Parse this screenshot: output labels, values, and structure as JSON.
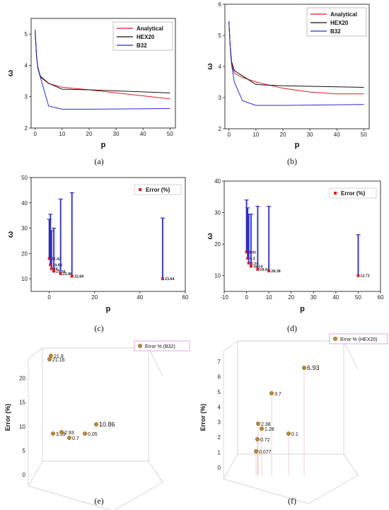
{
  "chart_data": [
    {
      "panel": "a",
      "type": "line",
      "caption": "(a)",
      "xlabel": "p",
      "ylabel": "ω",
      "xlim": [
        -1.5,
        52
      ],
      "ylim": [
        2,
        5.5
      ],
      "xticks": [
        0,
        10,
        20,
        30,
        40,
        50
      ],
      "yticks": [
        2,
        3,
        4,
        5
      ],
      "legend_position": "top-right",
      "series": [
        {
          "name": "Analytical",
          "color": "#e8191e",
          "x": [
            0,
            0.5,
            1,
            2,
            5,
            10,
            20,
            50
          ],
          "y": [
            5.1,
            4.3,
            3.95,
            3.62,
            3.42,
            3.3,
            3.22,
            2.93
          ]
        },
        {
          "name": "HEX20",
          "color": "#111111",
          "x": [
            0,
            0.5,
            1,
            2,
            5,
            10,
            20,
            50
          ],
          "y": [
            5.05,
            4.3,
            3.9,
            3.65,
            3.43,
            3.24,
            3.22,
            3.12
          ]
        },
        {
          "name": "B32",
          "color": "#2a2ad6",
          "x": [
            0,
            0.5,
            1,
            2,
            5,
            10,
            20,
            50
          ],
          "y": [
            5.15,
            4.35,
            3.9,
            3.6,
            2.7,
            2.6,
            2.6,
            2.62
          ]
        }
      ]
    },
    {
      "panel": "b",
      "type": "line",
      "caption": "(b)",
      "xlabel": "p",
      "ylabel": "ω",
      "xlim": [
        -1.5,
        52
      ],
      "ylim": [
        2,
        6
      ],
      "xticks": [
        0,
        10,
        20,
        30,
        40,
        50
      ],
      "yticks": [
        2,
        3,
        4,
        5,
        6
      ],
      "legend_position": "top-right",
      "series": [
        {
          "name": "Analytical",
          "color": "#e8191e",
          "x": [
            0,
            0.5,
            1,
            2,
            5,
            10,
            20,
            30,
            40,
            50
          ],
          "y": [
            5.4,
            4.6,
            4.1,
            3.78,
            3.65,
            3.5,
            3.3,
            3.18,
            3.12,
            3.12
          ]
        },
        {
          "name": "HEX20",
          "color": "#111111",
          "x": [
            0,
            0.5,
            1,
            2,
            5,
            10,
            20,
            50
          ],
          "y": [
            5.45,
            4.6,
            4.15,
            3.87,
            3.7,
            3.42,
            3.38,
            3.33
          ]
        },
        {
          "name": "B32",
          "color": "#2a2ad6",
          "x": [
            0,
            0.5,
            1,
            2,
            5,
            10,
            20,
            50
          ],
          "y": [
            5.45,
            4.55,
            4.05,
            3.5,
            2.9,
            2.75,
            2.75,
            2.78
          ]
        }
      ]
    },
    {
      "panel": "c",
      "type": "scatter",
      "caption": "(c)",
      "xlabel": "p",
      "ylabel": "ω",
      "xlim": [
        -8,
        60
      ],
      "ylim": [
        5,
        50
      ],
      "xticks": [
        0,
        20,
        40,
        60
      ],
      "yticks": [
        10,
        20,
        30,
        40,
        50
      ],
      "legend": "Error (%)",
      "legend_position": "top-right",
      "points": [
        {
          "x": 0,
          "y": 18,
          "top": 33.5,
          "label": "21.42"
        },
        {
          "x": 0.5,
          "y": 15.5,
          "top": 35.5,
          "label": "20.83"
        },
        {
          "x": 1,
          "y": 14,
          "top": 29,
          "label": "16.3"
        },
        {
          "x": 2,
          "y": 13,
          "top": 30,
          "label": "21.16"
        },
        {
          "x": 5,
          "y": 12,
          "top": 41.5,
          "label": "25.86"
        },
        {
          "x": 10,
          "y": 11,
          "top": 44,
          "label": "32.69"
        },
        {
          "x": 50,
          "y": 10,
          "top": 34,
          "label": "23.64"
        }
      ]
    },
    {
      "panel": "d",
      "type": "scatter",
      "caption": "(d)",
      "xlabel": "p",
      "ylabel": "ω",
      "xlim": [
        -10,
        60
      ],
      "ylim": [
        5,
        40
      ],
      "xticks": [
        -10,
        0,
        10,
        20,
        30,
        40,
        50,
        60
      ],
      "yticks": [
        10,
        20,
        30,
        40
      ],
      "legend": "Error (%)",
      "legend_position": "top-right",
      "points": [
        {
          "x": 0,
          "y": 17.5,
          "top": 34,
          "label": "4.01"
        },
        {
          "x": 0.5,
          "y": 15.5,
          "top": 31.5,
          "label": "6.2"
        },
        {
          "x": 1,
          "y": 14,
          "top": 29.5,
          "label": "5.14"
        },
        {
          "x": 2,
          "y": 13,
          "top": 29.5,
          "label": "16.14"
        },
        {
          "x": 5,
          "y": 12,
          "top": 32,
          "label": "19.91"
        },
        {
          "x": 10,
          "y": 11.5,
          "top": 32,
          "label": "20.38"
        },
        {
          "x": 50,
          "y": 10,
          "top": 23,
          "label": "12.71"
        }
      ]
    },
    {
      "panel": "e",
      "type": "scatter3d",
      "caption": "(e)",
      "zlabel": "Error (%)",
      "zlim": [
        0,
        22
      ],
      "zticks": [
        0,
        5,
        10,
        15,
        20
      ],
      "legend": "Error % (B32)",
      "legend_position": "top-right",
      "point_labels": [
        "21.9",
        "21.16",
        "10.86",
        "3.59",
        "2.93",
        "0.05",
        "0.7"
      ]
    },
    {
      "panel": "f",
      "type": "scatter3d",
      "caption": "(f)",
      "zlabel": "Error (%)",
      "zlim": [
        0,
        7
      ],
      "zticks": [
        0,
        1,
        2,
        3,
        4,
        5,
        6,
        7
      ],
      "legend": "Error % (HEX20)",
      "legend_position": "top-right",
      "point_labels": [
        "6.93",
        "3.7",
        "2.38",
        "1.28",
        "0.1",
        "0.72",
        "0.077"
      ]
    }
  ]
}
